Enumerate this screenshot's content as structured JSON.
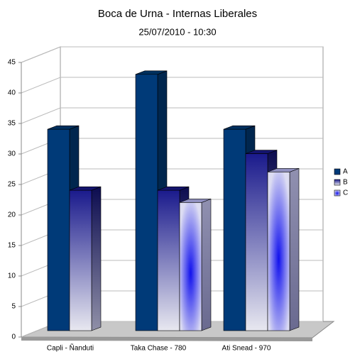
{
  "chart_data": {
    "type": "bar3d",
    "title": "Boca de Urna - Internas Liberales",
    "subtitle": "25/07/2010 - 10:30",
    "categories": [
      "Capli - Ñanduti",
      "Taka Chase - 780",
      "Ati Snead - 970"
    ],
    "series": [
      {
        "name": "A",
        "color": "#003a78",
        "values": [
          33,
          42,
          33
        ]
      },
      {
        "name": "B",
        "color": "#1a1a8c",
        "values": [
          23,
          23,
          29
        ]
      },
      {
        "name": "C",
        "color": "#1414e6",
        "values": [
          null,
          21,
          26
        ]
      }
    ],
    "ylim": [
      0,
      45
    ],
    "yticks": [
      0,
      5,
      10,
      15,
      20,
      25,
      30,
      35,
      40,
      45
    ],
    "grid": true,
    "legend": "right"
  }
}
